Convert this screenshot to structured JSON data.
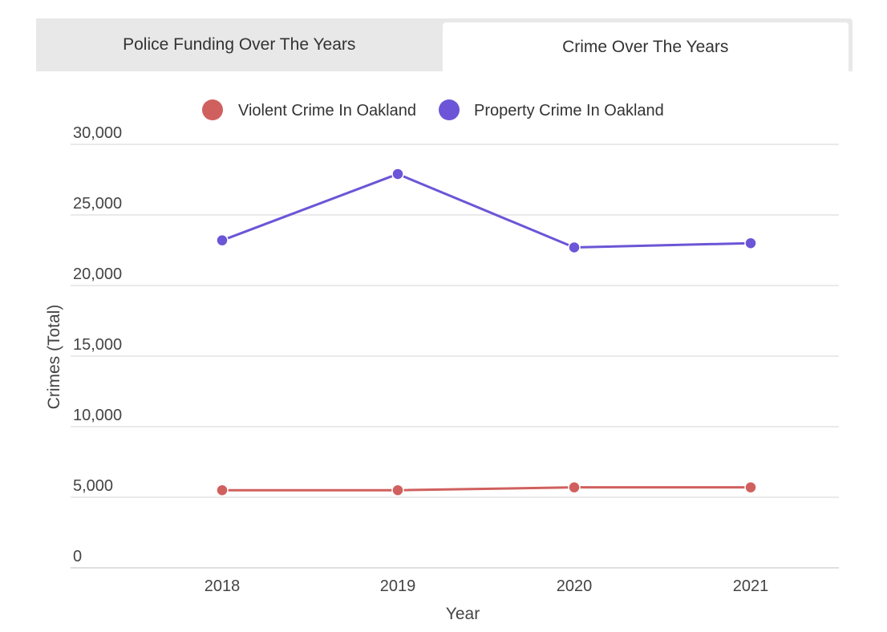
{
  "tabs": [
    {
      "label": "Police Funding Over The Years",
      "active": false
    },
    {
      "label": "Crime Over The Years",
      "active": true
    }
  ],
  "colors": {
    "violent": "#d0605e",
    "property": "#6c55d6",
    "grid": "#dddddd",
    "tab_bg": "#e8e8e8"
  },
  "chart_data": {
    "type": "line",
    "title": "",
    "xlabel": "Year",
    "ylabel": "Crimes (Total)",
    "categories": [
      "2018",
      "2019",
      "2020",
      "2021"
    ],
    "ylim": [
      0,
      30000
    ],
    "yticks": [
      0,
      5000,
      10000,
      15000,
      20000,
      25000,
      30000
    ],
    "ytick_labels": [
      "0",
      "5,000",
      "10,000",
      "15,000",
      "20,000",
      "25,000",
      "30,000"
    ],
    "grid": true,
    "legend_position": "top",
    "series": [
      {
        "name": "Violent Crime In Oakland",
        "color": "#d0605e",
        "values": [
          5500,
          5500,
          5700,
          5700
        ]
      },
      {
        "name": "Property Crime In Oakland",
        "color": "#6c55d6",
        "values": [
          23200,
          27900,
          22700,
          23000
        ]
      }
    ]
  }
}
